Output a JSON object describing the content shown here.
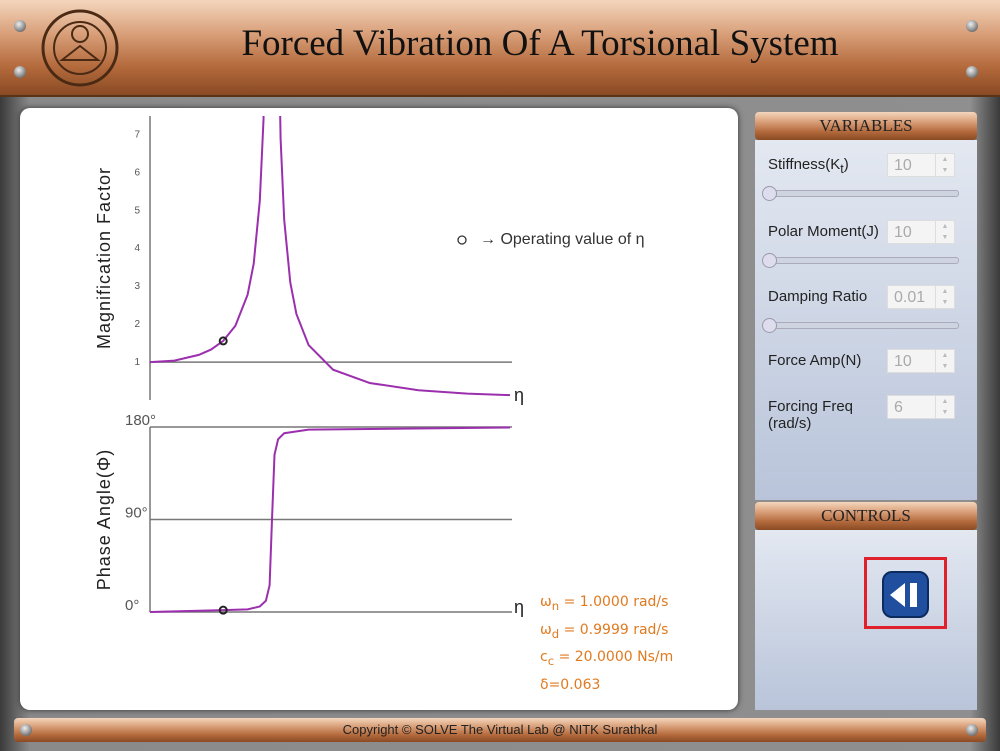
{
  "header": {
    "title": "Forced Vibration Of A Torsional System"
  },
  "chart_data": [
    {
      "type": "line",
      "y_label": "Magnification Factor",
      "x_label": "η",
      "color": "#9b2fae",
      "x": [
        0,
        0.2,
        0.4,
        0.5,
        0.6,
        0.7,
        0.8,
        0.85,
        0.9,
        0.93,
        0.96,
        1.04,
        1.07,
        1.1,
        1.15,
        1.2,
        1.3,
        1.5,
        1.8,
        2.2,
        2.6,
        2.95
      ],
      "values": [
        1,
        1.04,
        1.19,
        1.33,
        1.56,
        1.96,
        2.78,
        3.6,
        5.26,
        7.4,
        12.7,
        12.3,
        6.9,
        4.76,
        3.1,
        2.27,
        1.45,
        0.8,
        0.45,
        0.26,
        0.17,
        0.13
      ],
      "xlim": [
        0,
        2.95
      ],
      "ylim": [
        0,
        7.5
      ],
      "yticks": [
        1,
        2,
        3,
        4,
        5,
        6,
        7
      ],
      "reference_line": 1,
      "operating_point": {
        "x": 0.6,
        "y": 1.56
      }
    },
    {
      "type": "line",
      "y_label": "Phase Angle(Φ)",
      "x_label": "η",
      "color": "#9b2fae",
      "x": [
        0,
        0.6,
        0.8,
        0.9,
        0.95,
        0.98,
        1.0,
        1.02,
        1.05,
        1.1,
        1.3,
        2.95
      ],
      "values": [
        0,
        1.8,
        2.5,
        5.4,
        11,
        26,
        90,
        153,
        168,
        174,
        177.5,
        179.5
      ],
      "xlim": [
        0,
        2.95
      ],
      "ylim": [
        0,
        180
      ],
      "yticks": [
        {
          "value": 0,
          "label": "0°"
        },
        {
          "value": 90,
          "label": "90°"
        },
        {
          "value": 180,
          "label": "180°"
        }
      ],
      "grid": true,
      "operating_point": {
        "x": 0.6,
        "y": 1.8
      }
    }
  ],
  "legend": {
    "text": "→ Operating value of η"
  },
  "results": [
    {
      "symbol": "ω",
      "sub": "n",
      "text": " = 1.0000 rad/s"
    },
    {
      "symbol": "ω",
      "sub": "d",
      "text": " = 0.9999 rad/s"
    },
    {
      "symbol": "c",
      "sub": "c",
      "text": " = 20.0000 Ns/m"
    },
    {
      "symbol": "δ",
      "sub": "",
      "text": "=0.063"
    }
  ],
  "variables": {
    "title": "VARIABLES",
    "items": [
      {
        "label": "Stiffness(K",
        "sub": "t",
        "label_end": ")",
        "value": "10",
        "slider": true
      },
      {
        "label": "Polar Moment(J)",
        "value": "10",
        "slider": true
      },
      {
        "label": "Damping Ratio",
        "value": "0.01",
        "slider": true
      },
      {
        "label": "Force Amp(N)",
        "value": "10",
        "slider": false
      },
      {
        "label": "Forcing Freq",
        "label_line2": "(rad/s)",
        "value": "6",
        "slider": false
      }
    ]
  },
  "controls": {
    "title": "CONTROLS"
  },
  "footer": {
    "text": "Copyright © SOLVE The Virtual Lab @ NITK Surathkal"
  }
}
